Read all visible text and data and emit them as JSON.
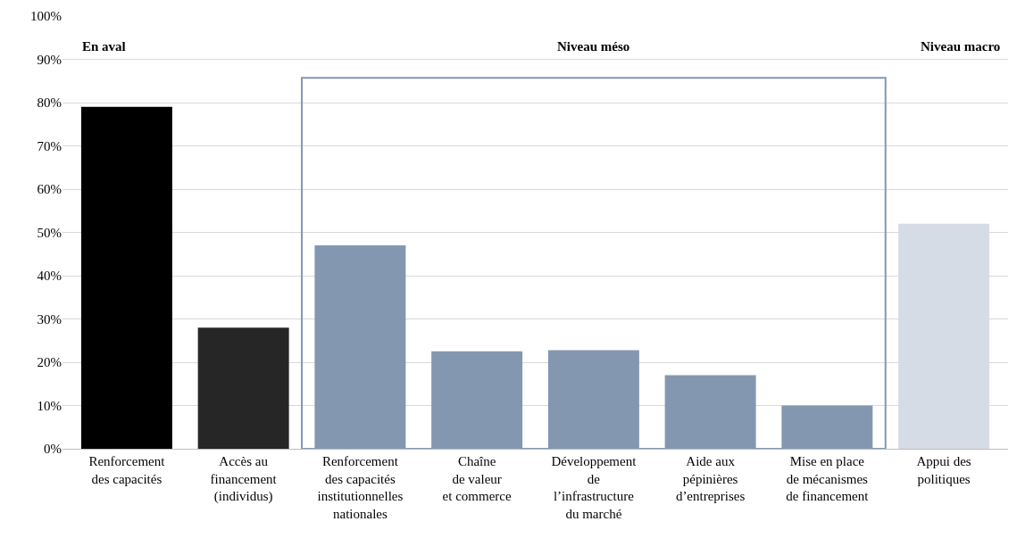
{
  "chart_data": {
    "type": "bar",
    "categories": [
      "Renforcement\ndes capacités",
      "Accès au\nfinancement\n(individus)",
      "Renforcement\ndes capacités\ninstitutionnelles\nnationales",
      "Chaîne\nde valeur\net commerce",
      "Développement\nde\nl’infrastructure\ndu marché",
      "Aide aux\npépinières\nd’entreprises",
      "Mise en place\nde mécanismes\nde financement",
      "Appui des\npolitiques"
    ],
    "values": [
      79,
      28,
      47,
      22.5,
      22.8,
      17,
      10,
      52
    ],
    "colors": [
      "#000000",
      "#262626",
      "#8497b0",
      "#8497b0",
      "#8497b0",
      "#8497b0",
      "#8497b0",
      "#d6dce5"
    ],
    "ylim": [
      0,
      100
    ],
    "yticks": [
      {
        "value": 0,
        "label": "0%"
      },
      {
        "value": 10,
        "label": "10%"
      },
      {
        "value": 20,
        "label": "20%"
      },
      {
        "value": 30,
        "label": "30%"
      },
      {
        "value": 40,
        "label": "40%"
      },
      {
        "value": 50,
        "label": "50%"
      },
      {
        "value": 60,
        "label": "60%"
      },
      {
        "value": 70,
        "label": "70%"
      },
      {
        "value": 80,
        "label": "80%"
      },
      {
        "value": 90,
        "label": "90%"
      },
      {
        "value": 100,
        "label": "100%"
      }
    ],
    "grid": "y",
    "annotations": [
      "En aval",
      "Niveau méso",
      "Niveau macro"
    ]
  }
}
